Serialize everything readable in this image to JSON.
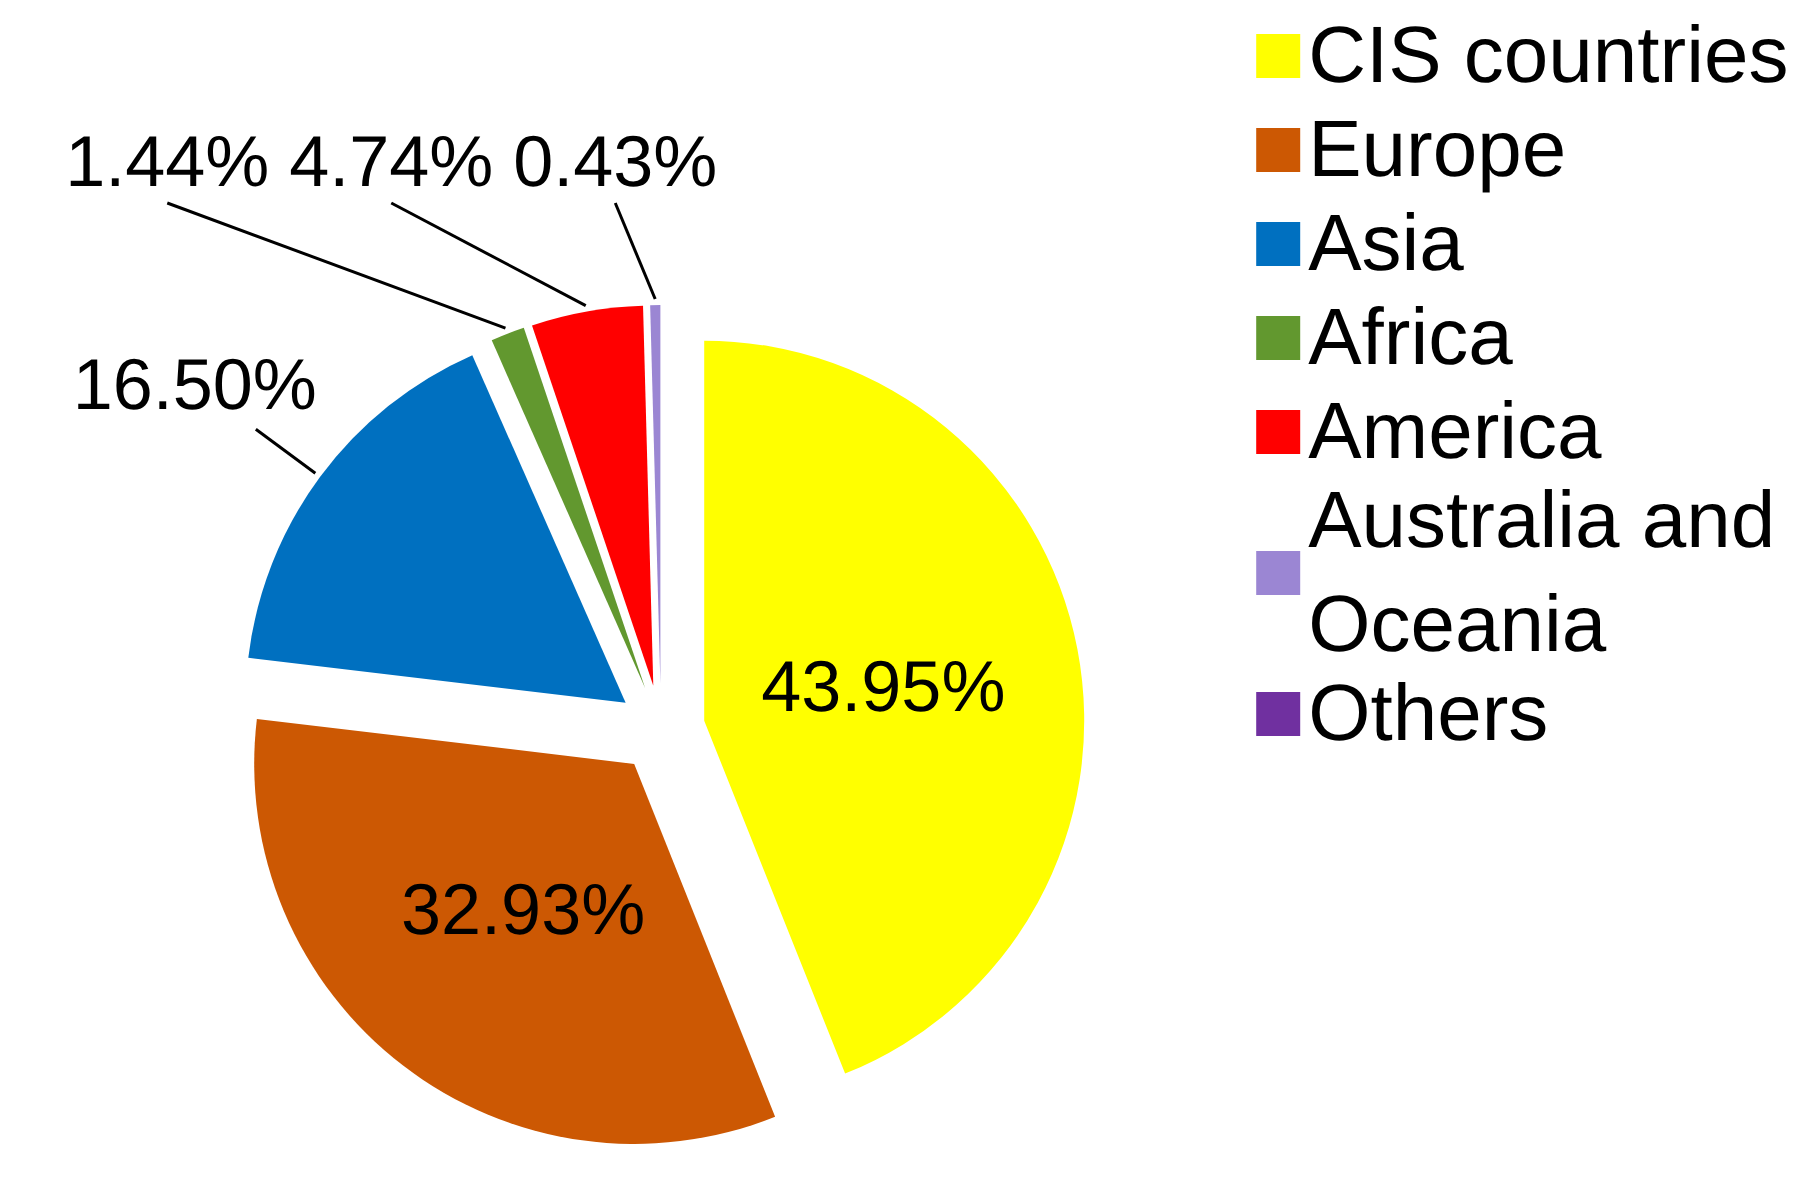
{
  "chart_data": {
    "type": "pie",
    "categories": [
      "CIS countries",
      "Europe",
      "Asia",
      "Africa",
      "America",
      "Australia and Oceania",
      "Others"
    ],
    "values": [
      43.95,
      32.93,
      16.5,
      1.44,
      4.74,
      0.43,
      null
    ],
    "colors": [
      "#ffff00",
      "#cc5803",
      "#0070c0",
      "#62982f",
      "#ff0000",
      "#9b86d3",
      "#7030a0"
    ],
    "value_labels": [
      "43.95%",
      "32.93%",
      "16.50%",
      "1.44%",
      "4.74%",
      "0.43%",
      null
    ],
    "legend": "top right"
  }
}
